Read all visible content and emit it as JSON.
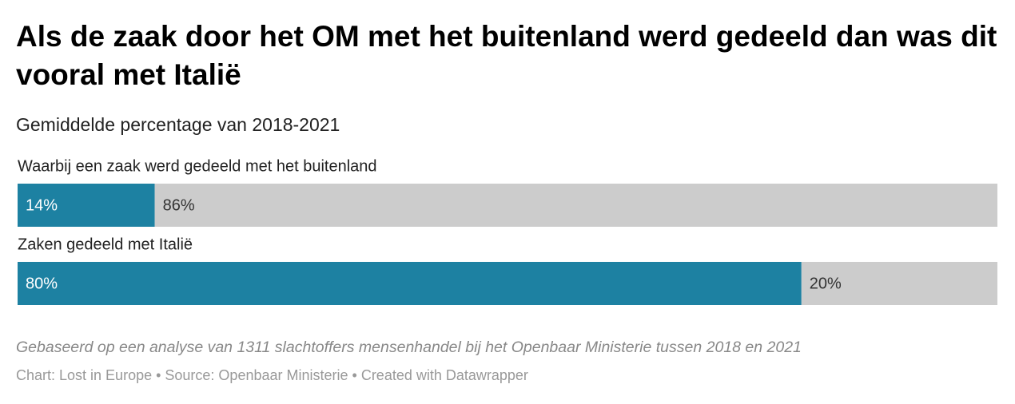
{
  "chart_data": {
    "type": "stacked-bar",
    "title": "Als de zaak door het OM met het buitenland werd gedeeld dan was dit vooral met Italië",
    "subtitle": "Gemiddelde percentage van 2018-2021",
    "categories": [
      "Waarbij een zaak werd gedeeld met het buitenland",
      "Zaken gedeeld met Italië"
    ],
    "series": [
      {
        "color": "#1d81a2",
        "values": [
          14,
          80
        ],
        "value_labels": [
          "14%",
          "80%"
        ],
        "label_color": "#ffffff"
      },
      {
        "color": "#cccccc",
        "values": [
          86,
          20
        ],
        "value_labels": [
          "86%",
          "20%"
        ],
        "label_color": "#333333"
      }
    ],
    "xlim": [
      0,
      100
    ],
    "note": "Gebaseerd op een analyse van 1311 slachtoffers mensenhandel bij het Openbaar Ministerie tussen 2018 en 2021",
    "byline": "Chart: Lost in Europe • Source: Openbaar Ministerie • Created with Datawrapper"
  }
}
